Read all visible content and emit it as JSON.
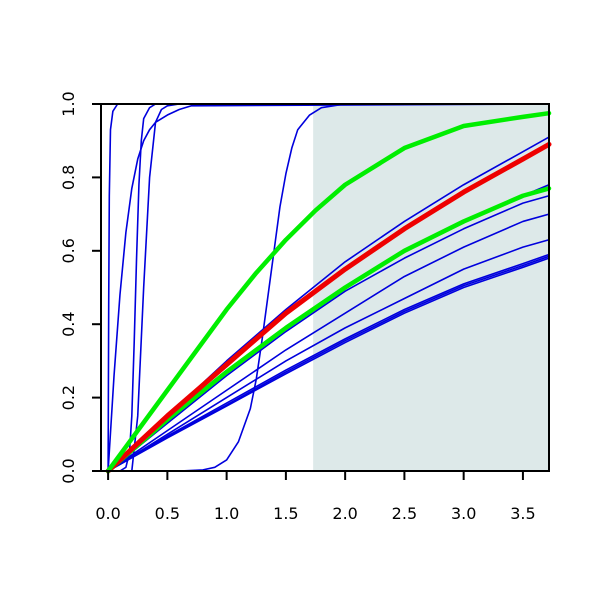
{
  "chart_data": {
    "type": "line",
    "title": "",
    "xlabel": "",
    "ylabel": "",
    "xlim": [
      -0.06,
      3.72
    ],
    "ylim": [
      0,
      1
    ],
    "x_ticks": [
      "0.0",
      "0.5",
      "1.0",
      "1.5",
      "2.0",
      "2.5",
      "3.0",
      "3.5"
    ],
    "y_ticks": [
      "0.0",
      "0.2",
      "0.4",
      "0.6",
      "0.8",
      "1.0"
    ],
    "shaded_region": {
      "x_from": 1.73,
      "x_to": 3.72,
      "color": "#dde9e9"
    },
    "grid": false,
    "legend": "none",
    "series": [
      {
        "color": "#0000dd",
        "width": 1.6,
        "x": [
          0,
          0.005,
          0.01,
          0.02,
          0.04,
          0.08,
          3.72
        ],
        "y": [
          0,
          0.45,
          0.75,
          0.93,
          0.98,
          1.0,
          1.0
        ]
      },
      {
        "color": "#0000dd",
        "width": 1.6,
        "x": [
          0,
          0.05,
          0.1,
          0.15,
          0.2,
          0.25,
          0.3,
          0.35,
          0.4,
          0.5,
          0.6,
          0.7,
          3.72
        ],
        "y": [
          0,
          0.26,
          0.48,
          0.65,
          0.77,
          0.85,
          0.9,
          0.93,
          0.95,
          0.97,
          0.985,
          0.995,
          1.0
        ]
      },
      {
        "color": "#0000dd",
        "width": 1.6,
        "x": [
          0,
          0.1,
          0.15,
          0.18,
          0.2,
          0.22,
          0.24,
          0.26,
          0.28,
          0.3,
          0.35,
          0.4,
          0.6,
          3.72
        ],
        "y": [
          0,
          0.0,
          0.01,
          0.05,
          0.15,
          0.35,
          0.58,
          0.78,
          0.9,
          0.96,
          0.99,
          1.0,
          1.0,
          1.0
        ]
      },
      {
        "color": "#0000dd",
        "width": 1.6,
        "x": [
          0,
          0.2,
          0.25,
          0.3,
          0.35,
          0.4,
          0.45,
          0.5,
          0.6,
          0.7,
          3.72
        ],
        "y": [
          0,
          0.0,
          0.15,
          0.5,
          0.8,
          0.95,
          0.985,
          0.995,
          1.0,
          1.0,
          1.0
        ]
      },
      {
        "color": "#0000dd",
        "width": 1.6,
        "x": [
          0,
          0.6,
          0.8,
          0.9,
          1.0,
          1.1,
          1.2,
          1.25,
          1.3,
          1.35,
          1.4,
          1.45,
          1.5,
          1.55,
          1.6,
          1.7,
          1.8,
          1.9,
          2.0,
          2.2,
          3.72
        ],
        "y": [
          0,
          0.0,
          0.003,
          0.01,
          0.03,
          0.08,
          0.17,
          0.25,
          0.36,
          0.48,
          0.6,
          0.72,
          0.81,
          0.88,
          0.93,
          0.97,
          0.99,
          0.995,
          1.0,
          1.0,
          1.0
        ]
      },
      {
        "color": "#0000dd",
        "width": 1.6,
        "x": [
          0,
          0.5,
          1,
          1.5,
          2,
          2.5,
          3,
          3.5,
          3.72
        ],
        "y": [
          0,
          0.15,
          0.3,
          0.44,
          0.57,
          0.68,
          0.78,
          0.87,
          0.91
        ]
      },
      {
        "color": "#0000dd",
        "width": 1.6,
        "x": [
          0,
          0.5,
          1,
          1.5,
          2,
          2.5,
          3,
          3.5,
          3.72
        ],
        "y": [
          0,
          0.14,
          0.27,
          0.39,
          0.5,
          0.6,
          0.68,
          0.75,
          0.78
        ]
      },
      {
        "color": "#0000dd",
        "width": 1.6,
        "x": [
          0,
          0.5,
          1,
          1.5,
          2,
          2.5,
          3,
          3.5,
          3.72
        ],
        "y": [
          0,
          0.13,
          0.26,
          0.38,
          0.49,
          0.58,
          0.66,
          0.73,
          0.75
        ]
      },
      {
        "color": "#0000dd",
        "width": 1.6,
        "x": [
          0,
          0.5,
          1,
          1.5,
          2,
          2.5,
          3,
          3.5,
          3.72
        ],
        "y": [
          0,
          0.11,
          0.22,
          0.33,
          0.43,
          0.53,
          0.61,
          0.68,
          0.7
        ]
      },
      {
        "color": "#0000dd",
        "width": 1.6,
        "x": [
          0,
          0.5,
          1,
          1.5,
          2,
          2.5,
          3,
          3.5,
          3.72
        ],
        "y": [
          0,
          0.1,
          0.2,
          0.3,
          0.39,
          0.47,
          0.55,
          0.61,
          0.63
        ]
      },
      {
        "color": "#0000dd",
        "width": 1.6,
        "x": [
          0,
          0.5,
          1,
          1.5,
          2,
          2.5,
          3,
          3.5,
          3.72
        ],
        "y": [
          0,
          0.095,
          0.185,
          0.275,
          0.36,
          0.44,
          0.51,
          0.565,
          0.59
        ]
      },
      {
        "color": "#0000dd",
        "width": 1.6,
        "x": [
          0,
          0.5,
          1,
          1.5,
          2,
          2.5,
          3,
          3.5,
          3.72
        ],
        "y": [
          0,
          0.092,
          0.18,
          0.27,
          0.355,
          0.435,
          0.505,
          0.56,
          0.585
        ]
      },
      {
        "color": "#0000dd",
        "width": 1.6,
        "x": [
          0,
          0.5,
          1,
          1.5,
          2,
          2.5,
          3,
          3.5,
          3.72
        ],
        "y": [
          0,
          0.09,
          0.177,
          0.265,
          0.35,
          0.43,
          0.5,
          0.555,
          0.58
        ]
      },
      {
        "color": "#00ee00",
        "width": 4.5,
        "x": [
          0,
          0.5,
          1,
          1.5,
          2,
          2.5,
          3,
          3.5,
          3.72
        ],
        "y": [
          0,
          0.14,
          0.27,
          0.39,
          0.5,
          0.6,
          0.68,
          0.75,
          0.77
        ]
      },
      {
        "color": "#ee0000",
        "width": 5,
        "x": [
          0,
          0.5,
          1,
          1.5,
          2,
          2.5,
          3,
          3.5,
          3.72
        ],
        "y": [
          0,
          0.15,
          0.29,
          0.43,
          0.55,
          0.66,
          0.76,
          0.85,
          0.89
        ]
      },
      {
        "color": "#00ee00",
        "width": 4.5,
        "x": [
          0,
          0.25,
          0.5,
          0.75,
          1,
          1.25,
          1.5,
          1.75,
          2,
          2.5,
          3,
          3.5,
          3.72
        ],
        "y": [
          0,
          0.11,
          0.22,
          0.33,
          0.44,
          0.54,
          0.63,
          0.71,
          0.78,
          0.88,
          0.94,
          0.965,
          0.975
        ]
      }
    ]
  }
}
